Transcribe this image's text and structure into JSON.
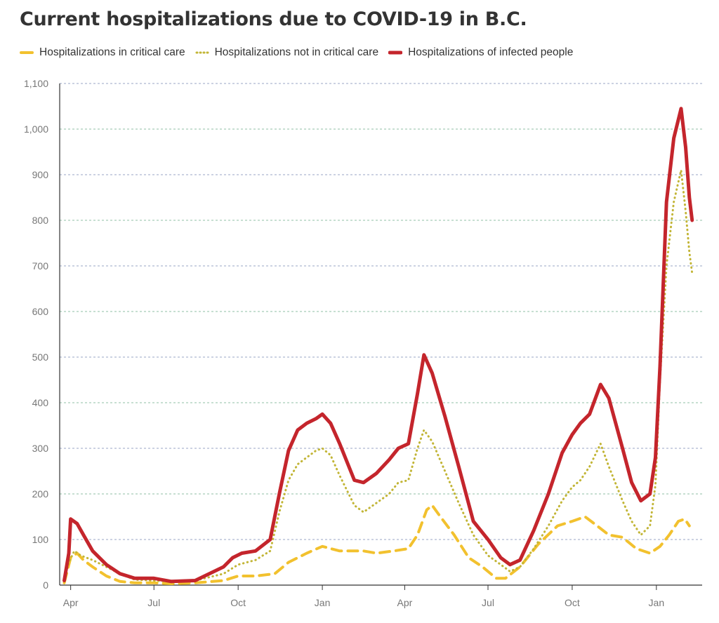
{
  "title": "Current hospitalizations due to COVID-19 in B.C.",
  "legend": [
    {
      "label": "Hospitalizations in critical care",
      "color": "#f2c12e",
      "style": "dashed"
    },
    {
      "label": "Hospitalizations not in critical care",
      "color": "#c2b536",
      "style": "dotted"
    },
    {
      "label": "Hospitalizations of infected people",
      "color": "#c4252c",
      "style": "solid"
    }
  ],
  "chart_data": {
    "type": "line",
    "title": "Current hospitalizations due to COVID-19 in B.C.",
    "xlabel": "",
    "ylabel": "",
    "ylim": [
      0,
      1100
    ],
    "yticks": [
      0,
      100,
      200,
      300,
      400,
      500,
      600,
      700,
      800,
      900,
      1000,
      1100
    ],
    "ytick_labels": [
      "0",
      "100",
      "200",
      "300",
      "400",
      "500",
      "600",
      "700",
      "800",
      "900",
      "1,000",
      "1,100"
    ],
    "xlim": [
      "2020-03-20",
      "2022-02-20"
    ],
    "xticks": [
      "2020-04-01",
      "2020-07-01",
      "2020-10-01",
      "2021-01-01",
      "2021-04-01",
      "2021-07-01",
      "2021-10-01",
      "2022-01-01"
    ],
    "xtick_labels": [
      "Apr",
      "Jul",
      "Oct",
      "Jan",
      "Apr",
      "Jul",
      "Oct",
      "Jan"
    ],
    "grid": "horizontal dashed",
    "legend_position": "top",
    "series": [
      {
        "name": "Hospitalizations in critical care",
        "color": "#f2c12e",
        "style": "dashed",
        "points": [
          [
            "2020-03-25",
            5
          ],
          [
            "2020-04-01",
            60
          ],
          [
            "2020-04-08",
            70
          ],
          [
            "2020-04-15",
            55
          ],
          [
            "2020-04-25",
            40
          ],
          [
            "2020-05-10",
            20
          ],
          [
            "2020-05-25",
            8
          ],
          [
            "2020-06-10",
            5
          ],
          [
            "2020-07-01",
            5
          ],
          [
            "2020-07-20",
            3
          ],
          [
            "2020-08-15",
            5
          ],
          [
            "2020-09-15",
            10
          ],
          [
            "2020-10-01",
            20
          ],
          [
            "2020-10-20",
            20
          ],
          [
            "2020-11-10",
            25
          ],
          [
            "2020-11-25",
            50
          ],
          [
            "2020-12-15",
            70
          ],
          [
            "2021-01-01",
            85
          ],
          [
            "2021-01-20",
            75
          ],
          [
            "2021-02-15",
            75
          ],
          [
            "2021-03-01",
            70
          ],
          [
            "2021-03-20",
            75
          ],
          [
            "2021-04-05",
            80
          ],
          [
            "2021-04-15",
            110
          ],
          [
            "2021-04-25",
            165
          ],
          [
            "2021-05-01",
            175
          ],
          [
            "2021-05-10",
            150
          ],
          [
            "2021-05-25",
            110
          ],
          [
            "2021-06-10",
            60
          ],
          [
            "2021-06-25",
            40
          ],
          [
            "2021-07-10",
            15
          ],
          [
            "2021-07-20",
            15
          ],
          [
            "2021-08-05",
            40
          ],
          [
            "2021-08-25",
            90
          ],
          [
            "2021-09-15",
            130
          ],
          [
            "2021-10-01",
            140
          ],
          [
            "2021-10-15",
            150
          ],
          [
            "2021-10-25",
            135
          ],
          [
            "2021-11-10",
            110
          ],
          [
            "2021-11-25",
            105
          ],
          [
            "2021-12-10",
            80
          ],
          [
            "2021-12-25",
            70
          ],
          [
            "2022-01-05",
            85
          ],
          [
            "2022-01-15",
            110
          ],
          [
            "2022-01-25",
            140
          ],
          [
            "2022-02-01",
            145
          ],
          [
            "2022-02-06",
            130
          ]
        ]
      },
      {
        "name": "Hospitalizations not in critical care",
        "color": "#c2b536",
        "style": "dotted",
        "points": [
          [
            "2020-03-25",
            10
          ],
          [
            "2020-03-30",
            50
          ],
          [
            "2020-04-05",
            75
          ],
          [
            "2020-04-12",
            65
          ],
          [
            "2020-04-25",
            55
          ],
          [
            "2020-05-10",
            40
          ],
          [
            "2020-05-25",
            25
          ],
          [
            "2020-06-10",
            12
          ],
          [
            "2020-07-01",
            10
          ],
          [
            "2020-07-20",
            8
          ],
          [
            "2020-08-15",
            10
          ],
          [
            "2020-09-15",
            25
          ],
          [
            "2020-10-01",
            45
          ],
          [
            "2020-10-20",
            55
          ],
          [
            "2020-11-05",
            75
          ],
          [
            "2020-11-15",
            160
          ],
          [
            "2020-11-25",
            230
          ],
          [
            "2020-12-05",
            265
          ],
          [
            "2020-12-15",
            280
          ],
          [
            "2020-12-25",
            295
          ],
          [
            "2021-01-01",
            300
          ],
          [
            "2021-01-10",
            285
          ],
          [
            "2021-01-20",
            240
          ],
          [
            "2021-02-05",
            175
          ],
          [
            "2021-02-15",
            160
          ],
          [
            "2021-03-01",
            180
          ],
          [
            "2021-03-15",
            200
          ],
          [
            "2021-03-25",
            225
          ],
          [
            "2021-04-05",
            230
          ],
          [
            "2021-04-15",
            300
          ],
          [
            "2021-04-22",
            340
          ],
          [
            "2021-05-01",
            315
          ],
          [
            "2021-05-15",
            250
          ],
          [
            "2021-05-30",
            180
          ],
          [
            "2021-06-15",
            110
          ],
          [
            "2021-07-01",
            65
          ],
          [
            "2021-07-15",
            45
          ],
          [
            "2021-07-25",
            30
          ],
          [
            "2021-08-05",
            40
          ],
          [
            "2021-08-20",
            80
          ],
          [
            "2021-09-05",
            130
          ],
          [
            "2021-09-20",
            185
          ],
          [
            "2021-10-01",
            215
          ],
          [
            "2021-10-10",
            230
          ],
          [
            "2021-10-20",
            260
          ],
          [
            "2021-11-01",
            310
          ],
          [
            "2021-11-10",
            260
          ],
          [
            "2021-11-25",
            185
          ],
          [
            "2021-12-05",
            140
          ],
          [
            "2021-12-15",
            110
          ],
          [
            "2021-12-25",
            130
          ],
          [
            "2021-12-31",
            220
          ],
          [
            "2022-01-05",
            450
          ],
          [
            "2022-01-12",
            700
          ],
          [
            "2022-01-20",
            840
          ],
          [
            "2022-01-28",
            910
          ],
          [
            "2022-02-02",
            820
          ],
          [
            "2022-02-06",
            730
          ],
          [
            "2022-02-09",
            685
          ]
        ]
      },
      {
        "name": "Hospitalizations of infected people",
        "color": "#c4252c",
        "style": "solid",
        "points": [
          [
            "2020-03-25",
            10
          ],
          [
            "2020-03-30",
            70
          ],
          [
            "2020-04-01",
            145
          ],
          [
            "2020-04-08",
            135
          ],
          [
            "2020-04-15",
            110
          ],
          [
            "2020-04-25",
            75
          ],
          [
            "2020-05-10",
            45
          ],
          [
            "2020-05-25",
            25
          ],
          [
            "2020-06-10",
            15
          ],
          [
            "2020-07-01",
            15
          ],
          [
            "2020-07-20",
            8
          ],
          [
            "2020-08-15",
            10
          ],
          [
            "2020-09-15",
            40
          ],
          [
            "2020-09-25",
            60
          ],
          [
            "2020-10-05",
            70
          ],
          [
            "2020-10-20",
            75
          ],
          [
            "2020-11-05",
            100
          ],
          [
            "2020-11-15",
            200
          ],
          [
            "2020-11-25",
            295
          ],
          [
            "2020-12-05",
            340
          ],
          [
            "2020-12-15",
            355
          ],
          [
            "2020-12-25",
            365
          ],
          [
            "2021-01-01",
            375
          ],
          [
            "2021-01-10",
            355
          ],
          [
            "2021-01-20",
            310
          ],
          [
            "2021-02-05",
            230
          ],
          [
            "2021-02-15",
            225
          ],
          [
            "2021-03-01",
            245
          ],
          [
            "2021-03-15",
            275
          ],
          [
            "2021-03-25",
            300
          ],
          [
            "2021-04-05",
            310
          ],
          [
            "2021-04-15",
            420
          ],
          [
            "2021-04-22",
            505
          ],
          [
            "2021-05-01",
            465
          ],
          [
            "2021-05-15",
            370
          ],
          [
            "2021-05-30",
            260
          ],
          [
            "2021-06-15",
            140
          ],
          [
            "2021-07-01",
            100
          ],
          [
            "2021-07-15",
            60
          ],
          [
            "2021-07-25",
            45
          ],
          [
            "2021-08-05",
            55
          ],
          [
            "2021-08-20",
            120
          ],
          [
            "2021-09-05",
            200
          ],
          [
            "2021-09-20",
            290
          ],
          [
            "2021-10-01",
            330
          ],
          [
            "2021-10-10",
            355
          ],
          [
            "2021-10-20",
            375
          ],
          [
            "2021-11-01",
            440
          ],
          [
            "2021-11-10",
            410
          ],
          [
            "2021-11-25",
            300
          ],
          [
            "2021-12-05",
            225
          ],
          [
            "2021-12-15",
            185
          ],
          [
            "2021-12-25",
            200
          ],
          [
            "2021-12-31",
            280
          ],
          [
            "2022-01-05",
            480
          ],
          [
            "2022-01-12",
            840
          ],
          [
            "2022-01-20",
            980
          ],
          [
            "2022-01-28",
            1045
          ],
          [
            "2022-02-02",
            960
          ],
          [
            "2022-02-06",
            850
          ],
          [
            "2022-02-09",
            800
          ]
        ]
      }
    ]
  }
}
